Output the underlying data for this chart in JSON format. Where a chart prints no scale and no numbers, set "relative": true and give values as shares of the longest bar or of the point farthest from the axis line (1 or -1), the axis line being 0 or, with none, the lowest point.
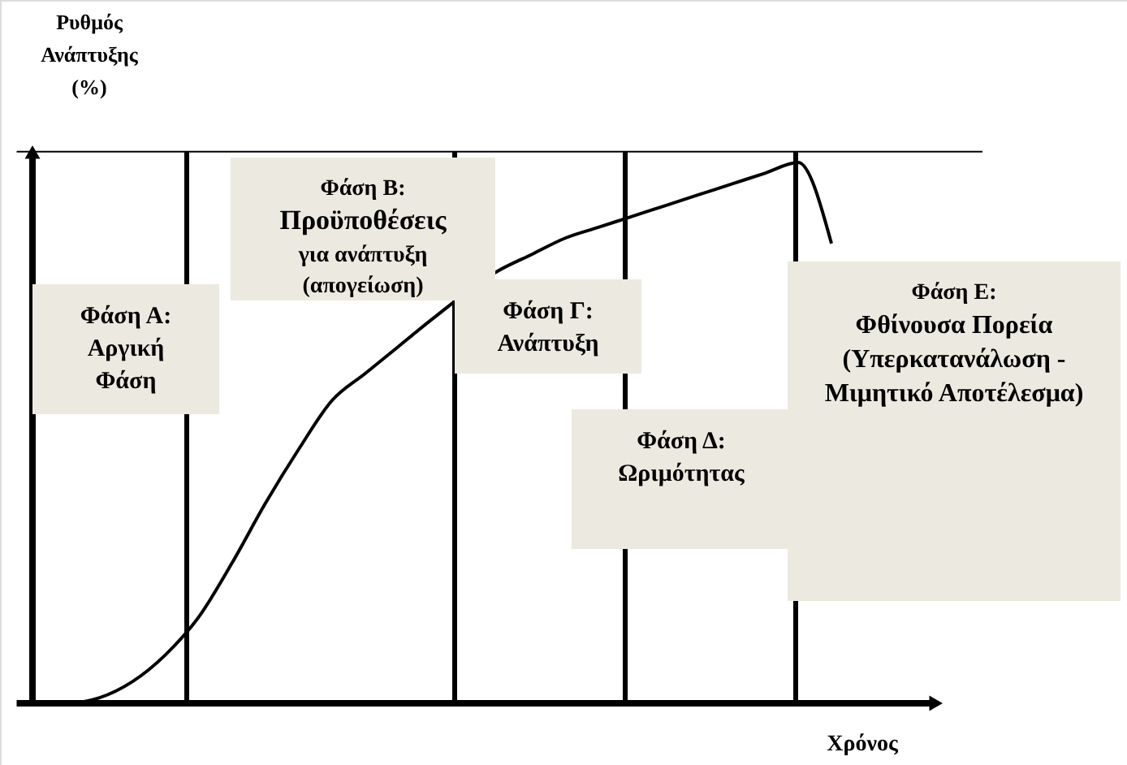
{
  "chart_data": {
    "type": "line",
    "relative": true,
    "xlabel": "Χρόνος",
    "ylabel": "Ρυθμός\nΑνάπτυξης\n(%)",
    "categories": [
      null,
      null,
      null,
      null,
      null,
      null,
      null,
      null,
      null,
      null,
      null,
      null,
      null,
      null,
      null,
      null,
      null,
      null,
      null,
      null,
      null,
      null,
      null,
      null,
      null
    ],
    "series": [
      {
        "color": "#000000",
        "values": [
          0,
          0.0,
          0.01,
          0.04,
          0.09,
          0.16,
          0.26,
          0.37,
          0.47,
          0.56,
          0.61,
          0.66,
          0.71,
          null,
          0.8,
          0.83,
          0.86,
          0.88,
          0.9,
          0.92,
          0.94,
          0.96,
          0.98,
          1,
          0.85
        ]
      }
    ],
    "ref_lines": [
      {
        "axis": "y",
        "value": 1.02,
        "color": "#000000"
      }
    ],
    "annotations": [
      "Φάση Α:\nΑργική\nΦάση",
      "Φάση Β:\nΠροϋποθέσεις\nγια ανάπτυξη\n(απογείωση)",
      "Φάση Γ:\nΑνάπτυξη",
      "Φάση Δ:\nΩριμότητας",
      "Φάση Ε:\nΦθίνουσα Πορεία\n(Υπερκατανάλωση -\nΜιμητικό Αποτέλεσμα)"
    ],
    "grid": false,
    "marker": "none",
    "line_style": "solid"
  }
}
